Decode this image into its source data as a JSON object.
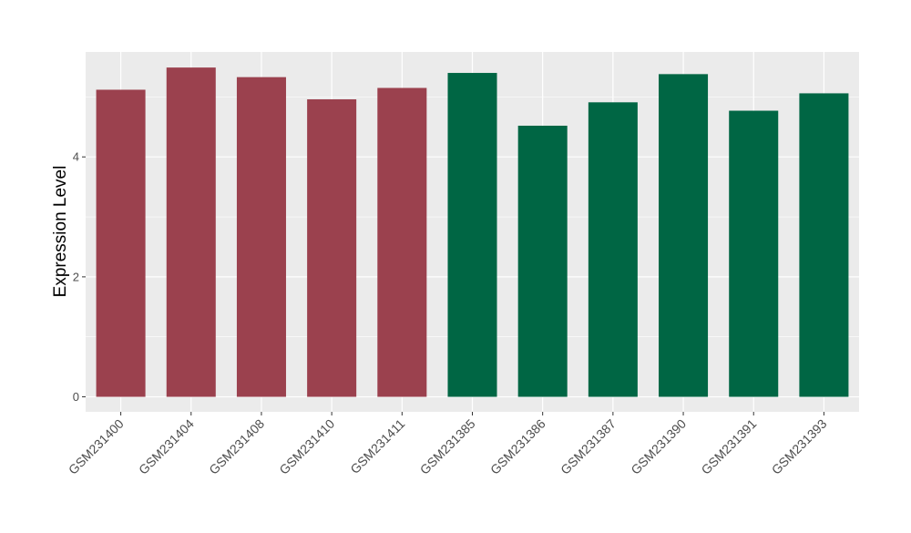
{
  "chart_data": {
    "type": "bar",
    "title": "",
    "xlabel": "",
    "ylabel": "Expression Level",
    "ylim": [
      -0.25,
      5.75
    ],
    "yticks": [
      0,
      2,
      4
    ],
    "grid": true,
    "legend": "none",
    "panel_background": "#ebebeb",
    "gridline_color": "#ffffff",
    "tick_color": "#333333",
    "categories": [
      "GSM231400",
      "GSM231404",
      "GSM231408",
      "GSM231410",
      "GSM231411",
      "GSM231385",
      "GSM231386",
      "GSM231387",
      "GSM231390",
      "GSM231391",
      "GSM231393"
    ],
    "values": [
      5.12,
      5.49,
      5.33,
      4.96,
      5.15,
      5.4,
      4.52,
      4.91,
      5.38,
      4.77,
      5.06
    ],
    "bar_colors": [
      "#9b414e",
      "#9b414e",
      "#9b414e",
      "#9b414e",
      "#9b414e",
      "#006644",
      "#006644",
      "#006644",
      "#006644",
      "#006644",
      "#006644"
    ]
  }
}
